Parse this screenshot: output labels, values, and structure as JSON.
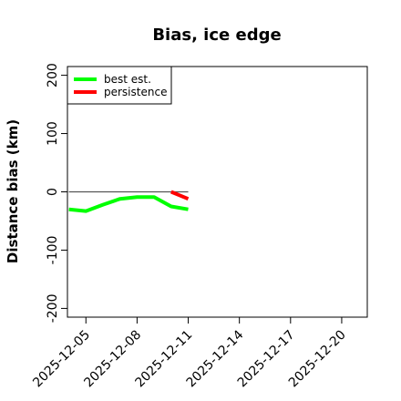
{
  "chart_data": {
    "type": "line",
    "title": "Bias, ice edge",
    "xlabel": "",
    "ylabel": "Distance bias (km)",
    "x_tick_labels": [
      "2025-12-05",
      "2025-12-08",
      "2025-12-11",
      "2025-12-14",
      "2025-12-17",
      "2025-12-20"
    ],
    "y_ticks": [
      200,
      100,
      0,
      -100,
      -200
    ],
    "y_tick_labels": [
      "200",
      "100",
      "0",
      "-100",
      "-200"
    ],
    "xlim": [
      "2025-12-03T22:00",
      "2025-12-21T12:00"
    ],
    "ylim": [
      -215,
      215
    ],
    "reference_line": {
      "y": 0,
      "x": [
        "2025-12-04",
        "2025-12-11"
      ],
      "color": "#555555"
    },
    "legend_position": "top-left",
    "series": [
      {
        "name": "best est.",
        "color": "#00ff00",
        "x": [
          "2025-12-04",
          "2025-12-05",
          "2025-12-06",
          "2025-12-07",
          "2025-12-08",
          "2025-12-09",
          "2025-12-10",
          "2025-12-11"
        ],
        "values": [
          -30,
          -33,
          -22,
          -12,
          -9,
          -9,
          -25,
          -30
        ]
      },
      {
        "name": "persistence",
        "color": "#ff0000",
        "x": [
          "2025-12-10",
          "2025-12-11"
        ],
        "values": [
          0,
          -12
        ]
      }
    ]
  }
}
